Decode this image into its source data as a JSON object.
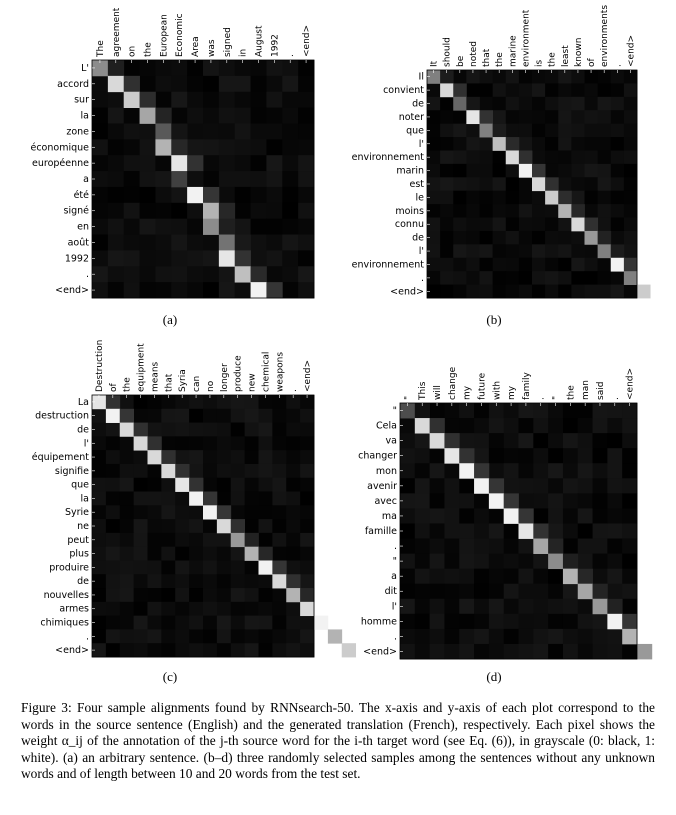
{
  "caption": {
    "label": "Figure 3:",
    "text": "Four sample alignments found by RNNsearch-50. The x-axis and y-axis of each plot correspond to the words in the source sentence (English) and the generated translation (French), respectively. Each pixel shows the weight α_ij of the annotation of the j-th source word for the i-th target word (see Eq. (6)), in grayscale (0: black, 1: white). (a) an arbitrary sentence. (b–d) three randomly selected samples among the sentences without any unknown words and of length between 10 and 20 words from the test set."
  },
  "chart_data": [
    {
      "type": "heatmap",
      "sublabel": "(a)",
      "x": [
        "The",
        "agreement",
        "on",
        "the",
        "European",
        "Economic",
        "Area",
        "was",
        "signed",
        "in",
        "August",
        "1992",
        ".",
        "<end>"
      ],
      "y": [
        "L'",
        "accord",
        "sur",
        "la",
        "zone",
        "économique",
        "européenne",
        "a",
        "été",
        "signé",
        "en",
        "août",
        "1992",
        ".",
        "<end>"
      ],
      "scale": "grayscale 0 black – 1 white",
      "cells": [
        [
          0,
          0.55
        ],
        [
          1,
          0.85
        ],
        [
          2,
          0.8
        ],
        [
          3,
          0.65
        ],
        [
          4,
          0.35
        ],
        [
          4,
          0.7
        ],
        [
          5,
          0.9
        ],
        [
          5,
          0.25
        ],
        [
          6,
          0.95
        ],
        [
          7,
          0.7
        ],
        [
          7,
          0.55
        ],
        [
          8,
          0.45
        ],
        [
          8,
          0.9
        ],
        [
          9,
          0.75
        ],
        [
          10,
          0.95
        ],
        [
          11,
          0.95
        ],
        [
          12,
          0.5
        ],
        [
          13,
          0.8
        ]
      ]
    },
    {
      "type": "heatmap",
      "sublabel": "(b)",
      "x": [
        "It",
        "should",
        "be",
        "noted",
        "that",
        "the",
        "marine",
        "environment",
        "is",
        "the",
        "least",
        "known",
        "of",
        "environments",
        ".",
        "<end>"
      ],
      "y": [
        "Il",
        "convient",
        "de",
        "noter",
        "que",
        "l'",
        "environnement",
        "marin",
        "est",
        "le",
        "moins",
        "connu",
        "de",
        "l'",
        "environnement",
        ".",
        "<end>"
      ],
      "scale": "grayscale 0 black – 1 white",
      "cells": [
        [
          0,
          0.5
        ],
        [
          1,
          0.85
        ],
        [
          2,
          0.4
        ],
        [
          3,
          0.9
        ],
        [
          4,
          0.5
        ],
        [
          5,
          0.75
        ],
        [
          6,
          0.85
        ],
        [
          7,
          0.95
        ],
        [
          8,
          0.85
        ],
        [
          9,
          0.8
        ],
        [
          10,
          0.7
        ],
        [
          11,
          0.85
        ],
        [
          12,
          0.6
        ],
        [
          13,
          0.5
        ],
        [
          14,
          0.95
        ],
        [
          15,
          0.5
        ],
        [
          16,
          0.8
        ]
      ]
    },
    {
      "type": "heatmap",
      "sublabel": "(c)",
      "x": [
        "Destruction",
        "of",
        "the",
        "equipment",
        "means",
        "that",
        "Syria",
        "can",
        "no",
        "longer",
        "produce",
        "new",
        "chemical",
        "weapons",
        ".",
        "<end>"
      ],
      "y": [
        "La",
        "destruction",
        "de",
        "l'",
        "équipement",
        "signifie",
        "que",
        "la",
        "Syrie",
        "ne",
        "peut",
        "plus",
        "produire",
        "de",
        "nouvelles",
        "armes",
        "chimiques",
        ".",
        "<end>"
      ],
      "scale": "grayscale 0 black – 1 white",
      "cells": [
        [
          0,
          0.9
        ],
        [
          1,
          0.95
        ],
        [
          2,
          0.85
        ],
        [
          3,
          0.85
        ],
        [
          4,
          0.85
        ],
        [
          5,
          0.85
        ],
        [
          6,
          0.9
        ],
        [
          7,
          0.95
        ],
        [
          8,
          0.95
        ],
        [
          9,
          0.85
        ],
        [
          10,
          0.6
        ],
        [
          11,
          0.7
        ],
        [
          12,
          0.95
        ],
        [
          13,
          0.85
        ],
        [
          14,
          0.7
        ],
        [
          15,
          0.85
        ],
        [
          16,
          0.95
        ],
        [
          17,
          0.7
        ],
        [
          18,
          0.8
        ]
      ]
    },
    {
      "type": "heatmap",
      "sublabel": "(d)",
      "x": [
        "\"",
        "This",
        "will",
        "change",
        "my",
        "future",
        "with",
        "my",
        "family",
        ".",
        "\"",
        "the",
        "man",
        "said",
        ".",
        "<end>"
      ],
      "y": [
        "\"",
        "Cela",
        "va",
        "changer",
        "mon",
        "avenir",
        "avec",
        "ma",
        "famille",
        ".",
        "\"",
        "a",
        "dit",
        "l'",
        "homme",
        ".",
        "<end>"
      ],
      "scale": "grayscale 0 black – 1 white",
      "cells": [
        [
          0,
          0.3
        ],
        [
          1,
          0.85
        ],
        [
          2,
          0.85
        ],
        [
          3,
          0.9
        ],
        [
          4,
          0.95
        ],
        [
          5,
          0.95
        ],
        [
          6,
          0.95
        ],
        [
          7,
          0.95
        ],
        [
          8,
          0.9
        ],
        [
          9,
          0.65
        ],
        [
          10,
          0.55
        ],
        [
          11,
          0.7
        ],
        [
          12,
          0.65
        ],
        [
          13,
          0.6
        ],
        [
          14,
          0.95
        ],
        [
          15,
          0.7
        ],
        [
          16,
          0.6
        ]
      ]
    }
  ]
}
